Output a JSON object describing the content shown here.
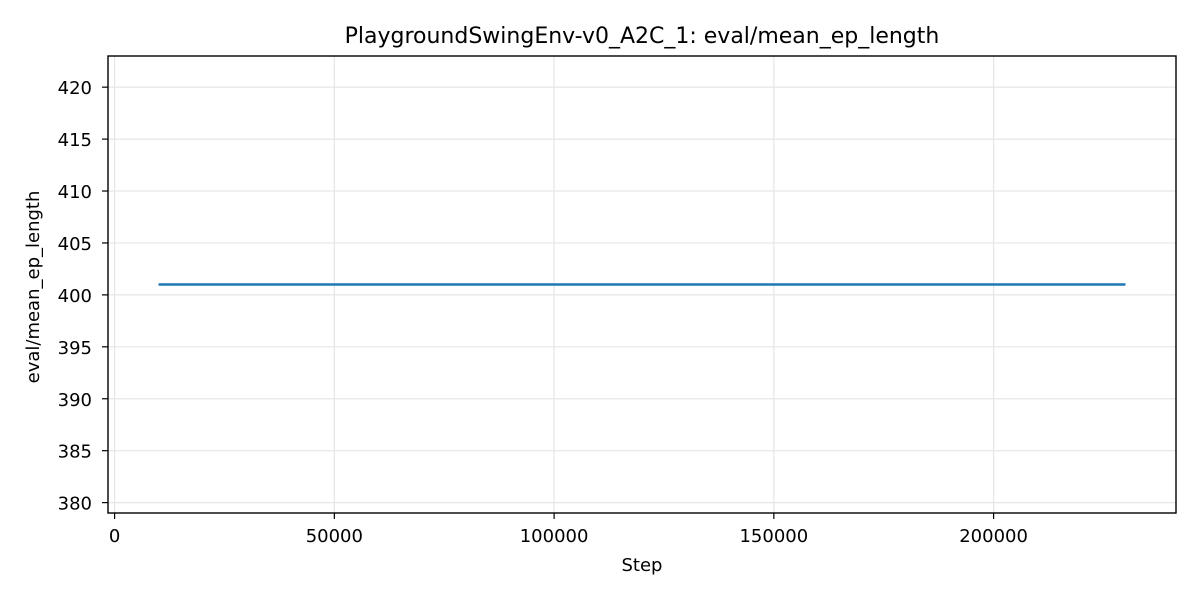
{
  "chart_data": {
    "type": "line",
    "title": "PlaygroundSwingEnv-v0_A2C_1: eval/mean_ep_length",
    "xlabel": "Step",
    "ylabel": "eval/mean_ep_length",
    "xlim": [
      -1500,
      241500
    ],
    "ylim": [
      379,
      423
    ],
    "xticks": [
      0,
      50000,
      100000,
      150000,
      200000
    ],
    "yticks": [
      380,
      385,
      390,
      395,
      400,
      405,
      410,
      415,
      420
    ],
    "grid": true,
    "series": [
      {
        "color": "#1f77b4",
        "x": [
          10000,
          230000
        ],
        "y": [
          401,
          401
        ]
      }
    ]
  }
}
